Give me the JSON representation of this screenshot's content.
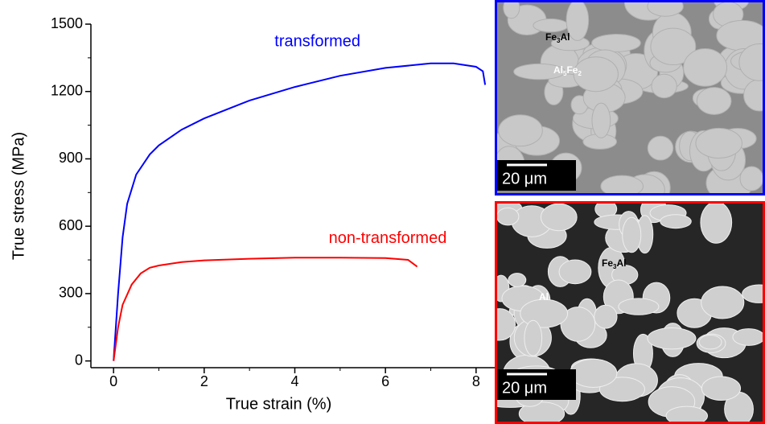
{
  "chart_data": {
    "type": "line",
    "xlabel": "True strain (%)",
    "ylabel": "True stress (MPa)",
    "xlim": [
      -0.5,
      8.5
    ],
    "ylim": [
      -30,
      1500
    ],
    "xticks": [
      0,
      2,
      4,
      6,
      8
    ],
    "yticks": [
      0,
      300,
      600,
      900,
      1200,
      1500
    ],
    "series": [
      {
        "name": "transformed",
        "color": "#0000ff",
        "x": [
          0,
          0.1,
          0.2,
          0.3,
          0.5,
          0.8,
          1,
          1.5,
          2,
          3,
          4,
          5,
          6,
          7,
          7.5,
          8,
          8.15,
          8.2
        ],
        "values": [
          0,
          300,
          550,
          700,
          830,
          920,
          960,
          1030,
          1080,
          1160,
          1220,
          1270,
          1305,
          1325,
          1325,
          1310,
          1290,
          1230
        ],
        "label_at": [
          4.5,
          1420
        ]
      },
      {
        "name": "non-transformed",
        "color": "#ff0000",
        "x": [
          0,
          0.1,
          0.2,
          0.4,
          0.6,
          0.8,
          1,
          1.5,
          2,
          3,
          4,
          5,
          6,
          6.5,
          6.7
        ],
        "values": [
          0,
          150,
          250,
          340,
          390,
          415,
          425,
          440,
          448,
          455,
          460,
          460,
          458,
          450,
          420
        ],
        "label_at": [
          6.05,
          545
        ]
      }
    ]
  },
  "insets": [
    {
      "border": "#0000ff",
      "scale_bar": "20 μm",
      "labels": [
        {
          "parts": [
            "Fe",
            "3",
            "Al"
          ]
        },
        {
          "parts": [
            "Al",
            "5",
            "Fe",
            "2"
          ]
        }
      ]
    },
    {
      "border": "#ff0000",
      "scale_bar": "20 μm",
      "labels": [
        {
          "parts": [
            "Fe",
            "3",
            "Al"
          ]
        },
        {
          "parts": [
            "Al"
          ]
        }
      ]
    }
  ]
}
